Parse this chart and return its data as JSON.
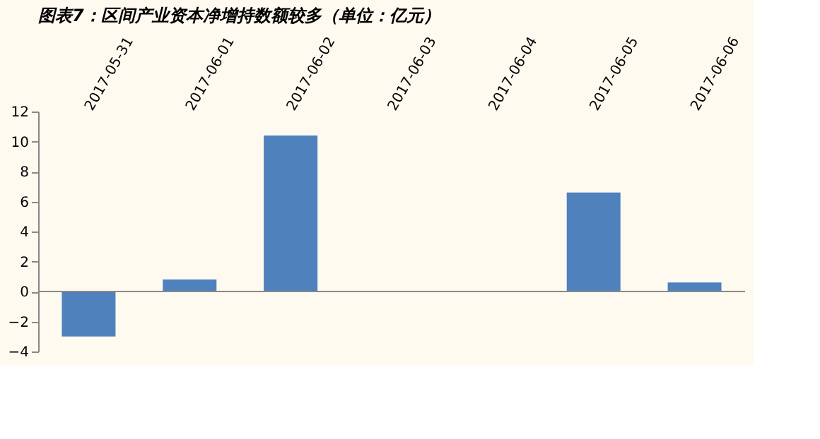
{
  "chart_data": {
    "type": "bar",
    "title": "图表7：区间产业资本净增持数额较多（单位：亿元）",
    "categories": [
      "2017-05-31",
      "2017-06-01",
      "2017-06-02",
      "2017-06-03",
      "2017-06-04",
      "2017-06-05",
      "2017-06-06"
    ],
    "values": [
      -3.0,
      0.8,
      10.4,
      0,
      0,
      6.6,
      0.6
    ],
    "color": "#4f81bd",
    "ylim": [
      -4,
      12
    ],
    "yticks": [
      -4,
      -2,
      0,
      2,
      4,
      6,
      8,
      10,
      12
    ],
    "grid": false,
    "ref_lines": [
      {
        "axis": "y",
        "value": 0,
        "color": "#888888"
      }
    ]
  }
}
